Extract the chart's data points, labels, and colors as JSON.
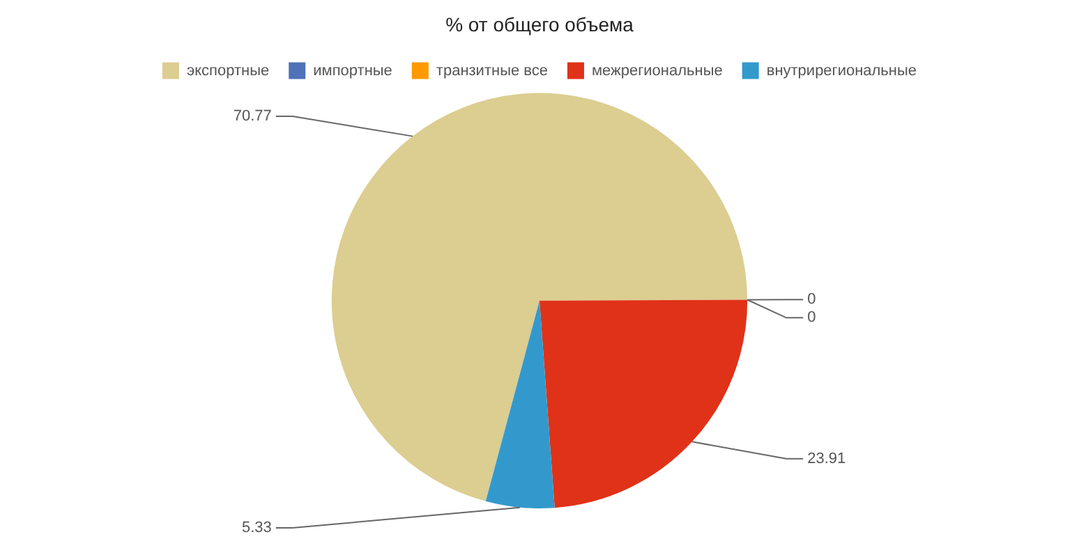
{
  "chart_data": {
    "type": "pie",
    "title": "% от общего объема",
    "categories": [
      "экспортные",
      "импортные",
      "транзитные все",
      "межрегиональные",
      "внутрирегиональные"
    ],
    "values": [
      70.77,
      0,
      0,
      23.91,
      5.33
    ],
    "colors": [
      "#dccd91",
      "#4f72b8",
      "#ff9900",
      "#e03218",
      "#3399cc"
    ],
    "value_labels": [
      "70.77",
      "0",
      "0",
      "23.91",
      "5.33"
    ],
    "legend": "top"
  }
}
